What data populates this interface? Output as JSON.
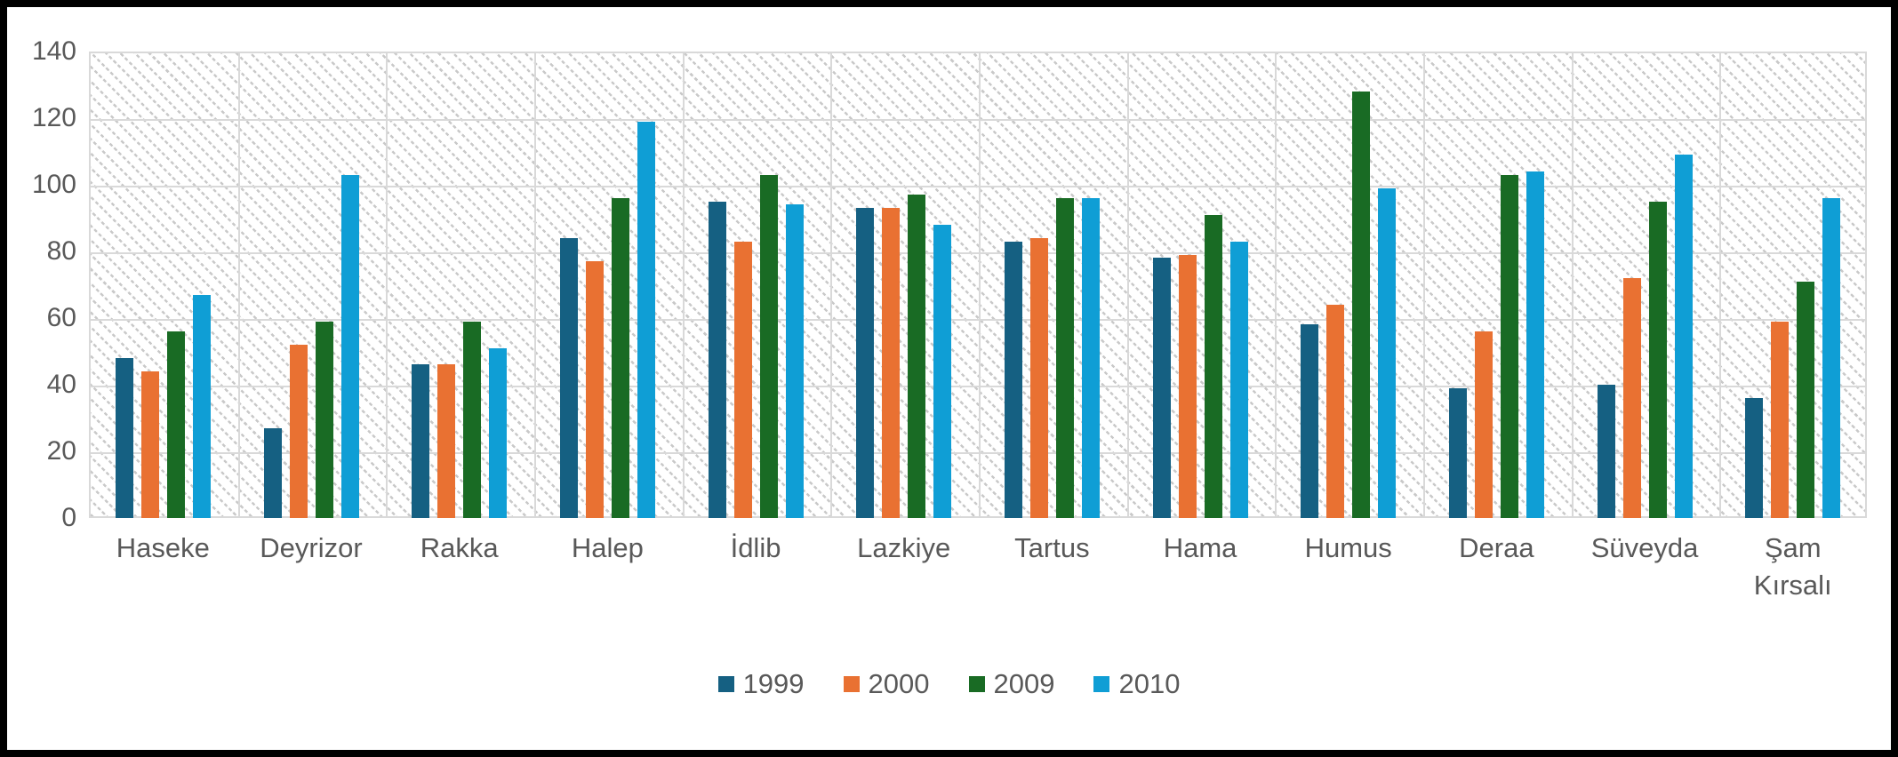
{
  "chart_data": {
    "type": "bar",
    "title": "",
    "categories": [
      "Haseke",
      "Deyrizor",
      "Rakka",
      "Halep",
      "İdlib",
      "Lazkiye",
      "Tartus",
      "Hama",
      "Humus",
      "Deraa",
      "Süveyda",
      "Şam Kırsalı"
    ],
    "series": [
      {
        "name": "1999",
        "color": "#156082",
        "values": [
          48,
          27,
          46,
          84,
          95,
          93,
          83,
          78,
          58,
          39,
          40,
          36
        ]
      },
      {
        "name": "2000",
        "color": "#E97132",
        "values": [
          44,
          52,
          46,
          77,
          83,
          93,
          84,
          79,
          64,
          56,
          72,
          59
        ]
      },
      {
        "name": "2009",
        "color": "#196B24",
        "values": [
          56,
          59,
          59,
          96,
          103,
          97,
          96,
          91,
          128,
          103,
          95,
          71
        ]
      },
      {
        "name": "2010",
        "color": "#0F9ED5",
        "values": [
          67,
          103,
          51,
          119,
          94,
          88,
          96,
          83,
          99,
          104,
          109,
          96
        ]
      }
    ],
    "y_axis": {
      "min": 0,
      "max": 140,
      "step": 20,
      "ticks": [
        "140",
        "120",
        "100",
        "80",
        "60",
        "40",
        "20",
        "0"
      ]
    },
    "legend": [
      "1999",
      "2000",
      "2009",
      "2010"
    ],
    "legend_position": "bottom",
    "grid": true,
    "plot_pattern": "diagonal-hatch",
    "colors": {
      "gridline": "#D9D9D9",
      "axis_text": "#595959",
      "frame_border": "#000000",
      "background": "#FFFFFF"
    }
  }
}
